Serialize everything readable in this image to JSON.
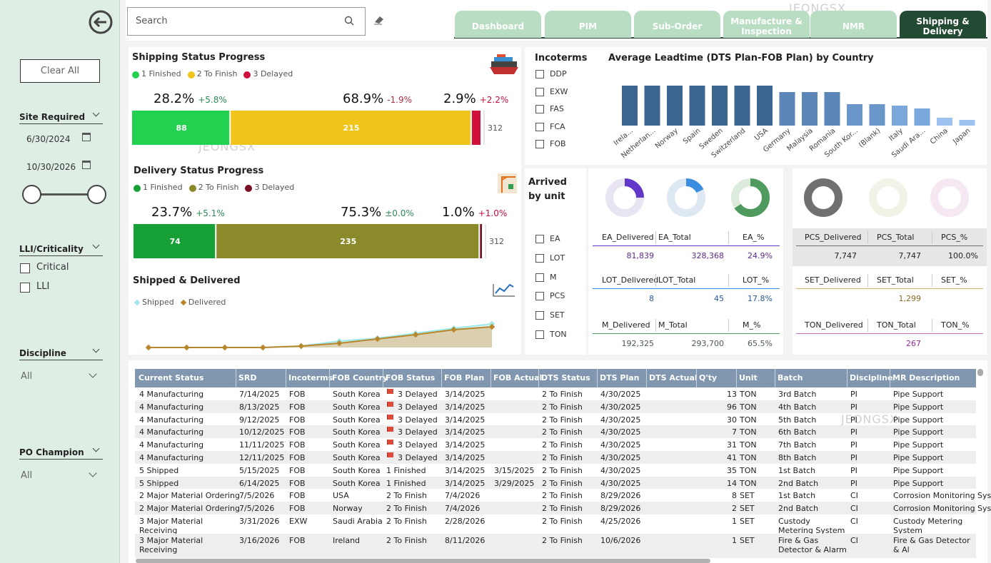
{
  "watermark": "JEONGSX",
  "search": {
    "placeholder": "Search"
  },
  "tabs": {
    "items": [
      "Dashboard",
      "PIM",
      "Sub-Order",
      "Manufacture & Inspection",
      "NMR",
      "Shipping & Delivery"
    ],
    "active": 5
  },
  "sidebar": {
    "clear_all": "Clear All",
    "site_required": {
      "label": "Site Required",
      "start": "6/30/2024",
      "end": "10/30/2026"
    },
    "lli": {
      "label": "LLI/Criticality",
      "options": [
        "Critical",
        "LLI"
      ]
    },
    "discipline": {
      "label": "Discipline",
      "value": "All"
    },
    "po_champion": {
      "label": "PO Champion",
      "value": "All"
    }
  },
  "shipping_status": {
    "title": "Shipping Status Progress",
    "legend": [
      {
        "name": "1 Finished",
        "color": "#22d14f"
      },
      {
        "name": "2 To Finish",
        "color": "#f0c419"
      },
      {
        "name": "3 Delayed",
        "color": "#d0103a"
      }
    ],
    "values": [
      88,
      215,
      9
    ],
    "percents": [
      "28.2%",
      "68.9%",
      "2.9%"
    ],
    "changes": [
      "+5.8%",
      "-1.9%",
      "+2.2%"
    ],
    "change_colors": [
      "#2e8b57",
      "#b03040",
      "#c0103a"
    ],
    "total": 312
  },
  "delivery_status": {
    "title": "Delivery Status Progress",
    "legend": [
      {
        "name": "1 Finished",
        "color": "#16a035"
      },
      {
        "name": "2 To Finish",
        "color": "#8b8a2a"
      },
      {
        "name": "3 Delayed",
        "color": "#7a0e22"
      }
    ],
    "values": [
      74,
      235,
      3
    ],
    "percents": [
      "23.7%",
      "75.3%",
      "1.0%"
    ],
    "changes": [
      "+5.1%",
      "±0.0%",
      "+1.0%"
    ],
    "change_colors": [
      "#2e8b57",
      "#2e8b57",
      "#c0103a"
    ],
    "total": 312
  },
  "shipped_delivered": {
    "type": "line",
    "title": "Shipped & Delivered",
    "series": [
      {
        "name": "Shipped",
        "color": "#9ee8e8",
        "values": [
          0,
          0,
          0,
          0,
          2,
          9,
          13,
          20,
          27,
          33
        ]
      },
      {
        "name": "Delivered",
        "color": "#b8862b",
        "values": [
          0,
          0,
          0,
          0,
          2,
          6,
          12,
          18,
          25,
          29
        ]
      }
    ]
  },
  "incoterms": {
    "title": "Incoterms",
    "options": [
      "DDP",
      "EXW",
      "FAS",
      "FCA",
      "FOB"
    ]
  },
  "leadtime_chart": {
    "type": "bar",
    "title": "Average Leadtime (DTS Plan-FOB Plan) by Country",
    "categories": [
      "Irela...",
      "Netherlan...",
      "Norway",
      "Spain",
      "Sweden",
      "Switzerland",
      "USA",
      "Germany",
      "Malaysia",
      "Romania",
      "South Kor...",
      "(Blank)",
      "Italy",
      "Saudi Ara...",
      "China",
      "Japan"
    ],
    "values": [
      56,
      56,
      56,
      56,
      56,
      56,
      56,
      47,
      47,
      47,
      30,
      30,
      28,
      24,
      11,
      8
    ],
    "colors": [
      "#3d6592",
      "#3d6592",
      "#3d6592",
      "#3d6592",
      "#3d6592",
      "#3d6592",
      "#3d6592",
      "#5a85b6",
      "#5a85b6",
      "#5a85b6",
      "#6a96c9",
      "#6a96c9",
      "#7aa7dc",
      "#7aa7dc",
      "#9dc2ef",
      "#9dc2ef"
    ]
  },
  "arrived": {
    "title": "Arrived by unit",
    "units": [
      "EA",
      "LOT",
      "M",
      "PCS",
      "SET",
      "TON"
    ]
  },
  "unit_cards": [
    {
      "headers": [
        "EA_Delivered",
        "EA_Total",
        "EA_%"
      ],
      "values": [
        "81,839",
        "328,368",
        "24.9%"
      ],
      "percent": 24.9,
      "color": "#6236c8",
      "ring": "#e9e4f2",
      "text_color": "#5a2a86"
    },
    {
      "headers": [
        "LOT_Delivered",
        "LOT_Total",
        "LOT_%"
      ],
      "values": [
        "8",
        "45",
        "17.8%"
      ],
      "percent": 17.8,
      "color": "#3a8de0",
      "ring": "#dde8f3",
      "text_color": "#2a5a9a"
    },
    {
      "headers": [
        "M_Delivered",
        "M_Total",
        "M_%"
      ],
      "values": [
        "192,325",
        "293,700",
        "65.5%"
      ],
      "percent": 65.5,
      "color": "#4f9a5e",
      "ring": "#dcebdc",
      "text_color": "#4a5a50"
    },
    {
      "headers": [
        "PCS_Delivered",
        "PCS_Total",
        "PCS_%"
      ],
      "values": [
        "7,747",
        "7,747",
        "100.0%"
      ],
      "percent": 100,
      "color": "#707070",
      "ring": "#e0e0e0",
      "text_color": "#222222"
    },
    {
      "headers": [
        "SET_Delivered",
        "SET_Total",
        "SET_%"
      ],
      "values": [
        null,
        "1,299",
        null
      ],
      "percent": 0,
      "color": "#c9b46a",
      "ring": "#f3f2e6",
      "text_color": "#8a6a20"
    },
    {
      "headers": [
        "TON_Delivered",
        "TON_Total",
        "TON_%"
      ],
      "values": [
        null,
        "267",
        null
      ],
      "percent": 0,
      "color": "#c86ab8",
      "ring": "#f5e8f3",
      "text_color": "#9a2a9a"
    }
  ],
  "table": {
    "columns": [
      "Current Status",
      "SRD",
      "Incoterms",
      "FOB Country",
      "FOB Status",
      "FOB Plan",
      "FOB Actual",
      "DTS Status",
      "DTS Plan",
      "DTS Actual",
      "Q'ty",
      "Unit",
      "Batch",
      "Discipline",
      "MR Description"
    ],
    "rows": [
      [
        "4 Manufacturing",
        "7/14/2025",
        "FOB",
        "South Korea",
        "3 Delayed",
        "3/14/2025",
        null,
        "2 To Finish",
        "4/30/2025",
        null,
        13,
        "TON",
        "3rd Batch",
        "PI",
        "Pipe Support"
      ],
      [
        "4 Manufacturing",
        "8/13/2025",
        "FOB",
        "South Korea",
        "3 Delayed",
        "3/14/2025",
        null,
        "2 To Finish",
        "4/30/2025",
        null,
        96,
        "TON",
        "4th Batch",
        "PI",
        "Pipe Support"
      ],
      [
        "4 Manufacturing",
        "9/12/2025",
        "FOB",
        "South Korea",
        "3 Delayed",
        "3/14/2025",
        null,
        "2 To Finish",
        "4/30/2025",
        null,
        30,
        "TON",
        "5th Batch",
        "PI",
        "Pipe Support"
      ],
      [
        "4 Manufacturing",
        "10/12/2025",
        "FOB",
        "South Korea",
        "3 Delayed",
        "3/14/2025",
        null,
        "2 To Finish",
        "4/30/2025",
        null,
        7,
        "TON",
        "6th Batch",
        "PI",
        "Pipe Support"
      ],
      [
        "4 Manufacturing",
        "11/11/2025",
        "FOB",
        "South Korea",
        "3 Delayed",
        "3/14/2025",
        null,
        "2 To Finish",
        "4/30/2025",
        null,
        31,
        "TON",
        "7th Batch",
        "PI",
        "Pipe Support"
      ],
      [
        "4 Manufacturing",
        "12/11/2025",
        "FOB",
        "South Korea",
        "3 Delayed",
        "3/14/2025",
        null,
        "2 To Finish",
        "4/30/2025",
        null,
        41,
        "TON",
        "8th Batch",
        "PI",
        "Pipe Support"
      ],
      [
        "5 Shipped",
        "5/15/2025",
        "FOB",
        "South Korea",
        "1 Finished",
        "3/14/2025",
        "3/15/2025",
        "2 To Finish",
        "4/30/2025",
        null,
        35,
        "TON",
        "1st Batch",
        "PI",
        "Pipe Support"
      ],
      [
        "5 Shipped",
        "6/14/2025",
        "FOB",
        "South Korea",
        "1 Finished",
        "3/14/2025",
        "3/29/2025",
        "2 To Finish",
        "4/30/2025",
        null,
        14,
        "TON",
        "2nd Batch",
        "PI",
        "Pipe Support"
      ],
      [
        "2 Major Material Ordering",
        "7/5/2026",
        "FOB",
        "USA",
        "2 To Finish",
        "7/4/2026",
        null,
        "2 To Finish",
        "8/29/2026",
        null,
        8,
        "SET",
        "1st Batch",
        "CI",
        "Corrosion Monitoring Sys"
      ],
      [
        "2 Major Material Ordering",
        "7/5/2026",
        "FOB",
        "Norway",
        "2 To Finish",
        "7/4/2026",
        null,
        "2 To Finish",
        "8/29/2026",
        null,
        2,
        "SET",
        "2nd Batch",
        "CI",
        "Corrosion Monitoring Sys"
      ],
      [
        "3 Major Material Receiving",
        "3/31/2026",
        "EXW",
        "Saudi Arabia",
        "2 To Finish",
        "2/28/2026",
        null,
        "2 To Finish",
        "4/25/2026",
        null,
        1,
        "SET",
        "Custody Metering System",
        "CI",
        "Custody Metering System"
      ],
      [
        "3 Major Material Receiving",
        "3/16/2026",
        "FOB",
        "Ireland",
        "2 To Finish",
        "8/11/2026",
        null,
        "2 To Finish",
        "10/6/2026",
        null,
        1,
        "SET",
        "Fire & Gas Detector & Alarm",
        "CI",
        "Fire & Gas Detector & Al"
      ]
    ]
  }
}
